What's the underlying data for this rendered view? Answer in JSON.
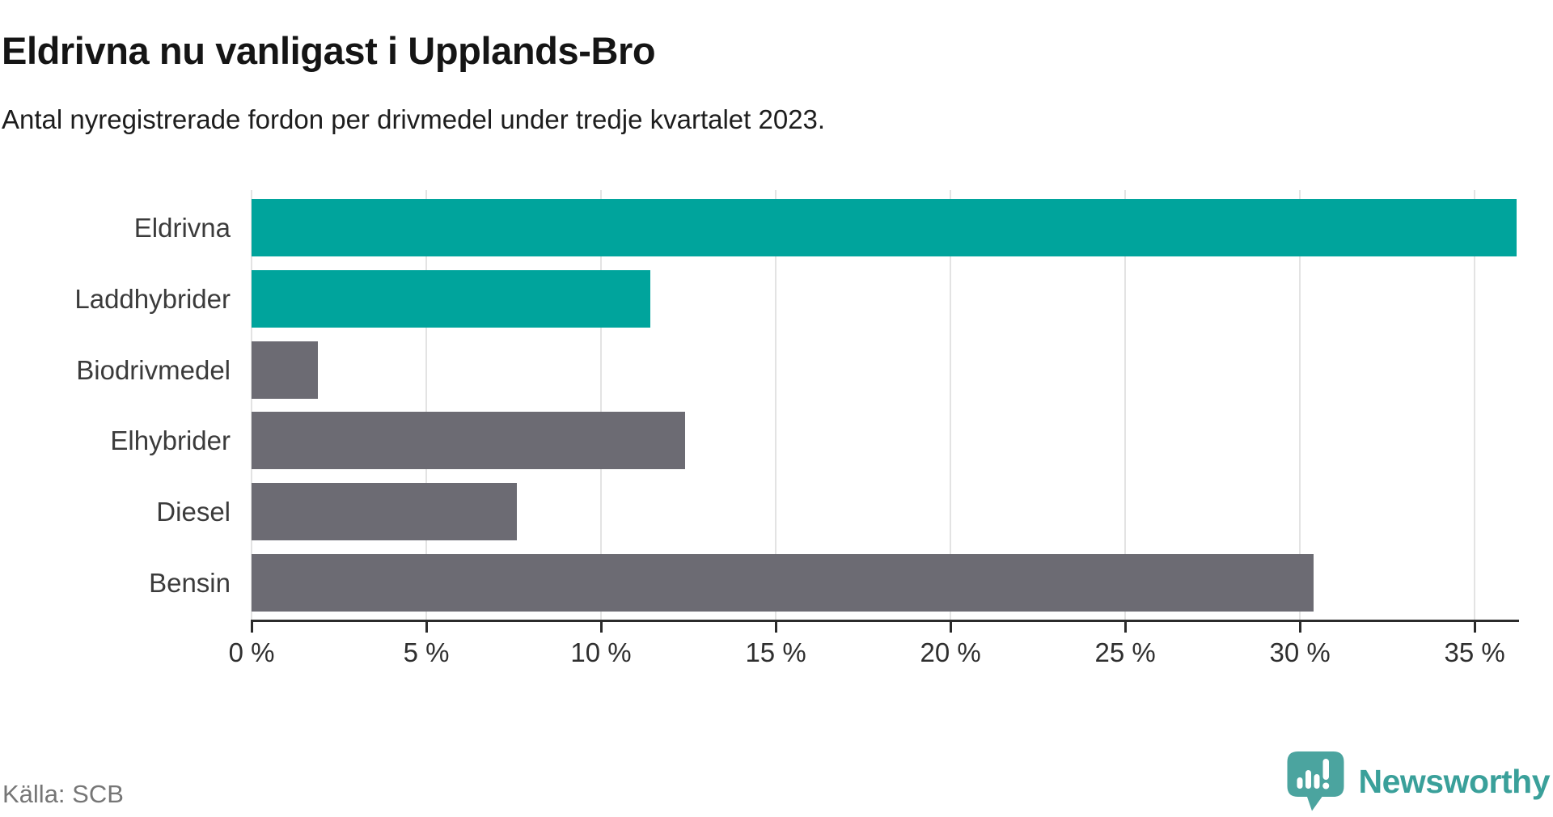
{
  "header": {
    "title": "Eldrivna nu vanligast i Upplands-Bro",
    "subtitle": "Antal nyregistrerade fordon per drivmedel under tredje kvartalet 2023."
  },
  "chart_data": {
    "type": "bar",
    "orientation": "horizontal",
    "title": "Eldrivna nu vanligast i Upplands-Bro",
    "subtitle": "Antal nyregistrerade fordon per drivmedel under tredje kvartalet 2023.",
    "categories": [
      "Eldrivna",
      "Laddhybrider",
      "Biodrivmedel",
      "Elhybrider",
      "Diesel",
      "Bensin"
    ],
    "values": [
      36.2,
      11.4,
      1.9,
      12.4,
      7.6,
      30.4
    ],
    "unit": "%",
    "xlim": [
      0,
      36.2
    ],
    "xticks": [
      0,
      5,
      10,
      15,
      20,
      25,
      30,
      35
    ],
    "xtick_labels": [
      "0 %",
      "5 %",
      "10 %",
      "15 %",
      "20 %",
      "25 %",
      "30 %",
      "35 %"
    ],
    "grid": true,
    "legend": false,
    "bar_styles": [
      "highlight",
      "highlight",
      "default",
      "default",
      "default",
      "default"
    ],
    "colors": {
      "highlight": "#00a49c",
      "default": "#6c6b73",
      "gridline": "#e3e3e3",
      "axis": "#2b2b2b"
    }
  },
  "footer": {
    "source_label": "Källa: SCB",
    "brand_name": "Newsworthy",
    "brand_logo_color": "#4ba49f",
    "brand_text_color": "#3aa09a",
    "brand_icon": "newsworthy-speech-bubble-chart-icon"
  }
}
